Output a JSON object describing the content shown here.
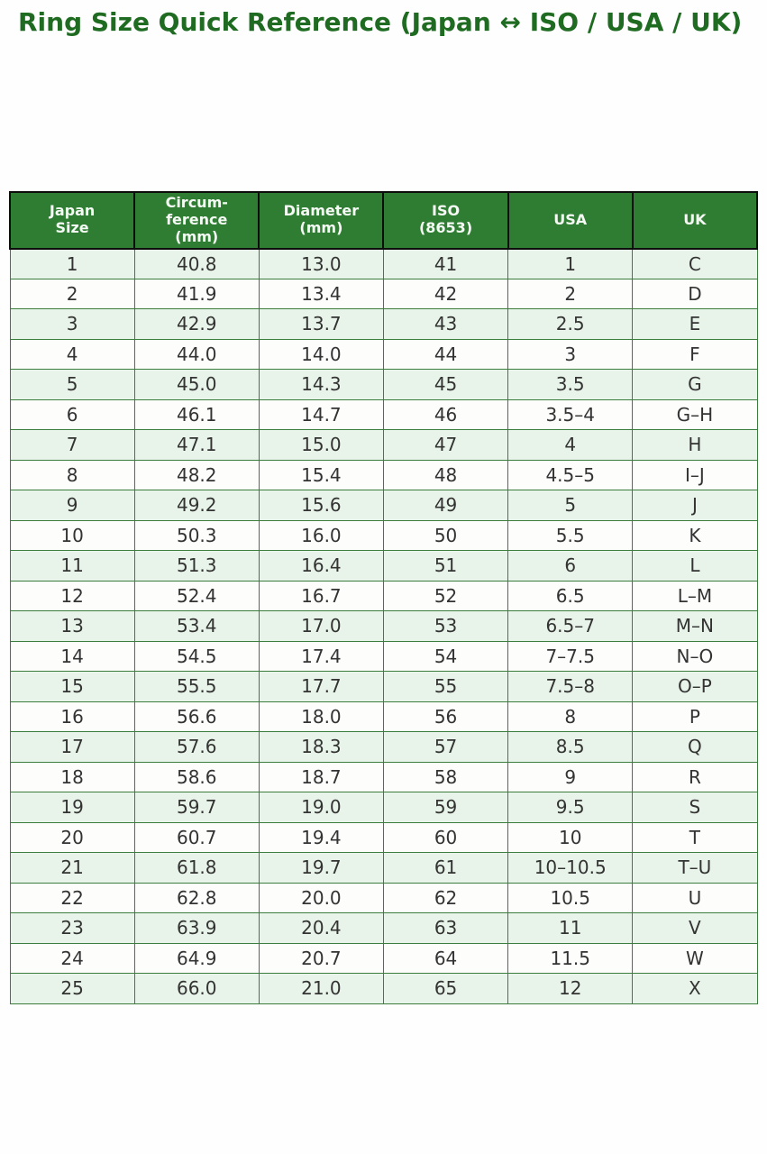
{
  "page": {
    "title": "Ring Size Quick Reference (Japan ↔ ISO / USA / UK)"
  },
  "colors": {
    "title_text": "#1e6b21",
    "header_bg": "#2e7d32",
    "header_text": "#f5fbf4",
    "row_stripe_bg": "#e8f4e9",
    "row_plain_bg": "#fdfdfc",
    "body_border": "#3a7d3c",
    "header_border": "#0d0d0d",
    "cell_text": "#333333",
    "page_bg": "#fefefe"
  },
  "chart_data": {
    "type": "table",
    "title": "Ring Size Quick Reference (Japan ↔ ISO / USA / UK)",
    "columns": [
      "Japan\nSize",
      "Circum-\nference\n(mm)",
      "Diameter\n(mm)",
      "ISO\n(8653)",
      "USA",
      "UK"
    ],
    "rows": [
      [
        "1",
        "40.8",
        "13.0",
        "41",
        "1",
        "C"
      ],
      [
        "2",
        "41.9",
        "13.4",
        "42",
        "2",
        "D"
      ],
      [
        "3",
        "42.9",
        "13.7",
        "43",
        "2.5",
        "E"
      ],
      [
        "4",
        "44.0",
        "14.0",
        "44",
        "3",
        "F"
      ],
      [
        "5",
        "45.0",
        "14.3",
        "45",
        "3.5",
        "G"
      ],
      [
        "6",
        "46.1",
        "14.7",
        "46",
        "3.5–4",
        "G–H"
      ],
      [
        "7",
        "47.1",
        "15.0",
        "47",
        "4",
        "H"
      ],
      [
        "8",
        "48.2",
        "15.4",
        "48",
        "4.5–5",
        "I–J"
      ],
      [
        "9",
        "49.2",
        "15.6",
        "49",
        "5",
        "J"
      ],
      [
        "10",
        "50.3",
        "16.0",
        "50",
        "5.5",
        "K"
      ],
      [
        "11",
        "51.3",
        "16.4",
        "51",
        "6",
        "L"
      ],
      [
        "12",
        "52.4",
        "16.7",
        "52",
        "6.5",
        "L–M"
      ],
      [
        "13",
        "53.4",
        "17.0",
        "53",
        "6.5–7",
        "M–N"
      ],
      [
        "14",
        "54.5",
        "17.4",
        "54",
        "7–7.5",
        "N–O"
      ],
      [
        "15",
        "55.5",
        "17.7",
        "55",
        "7.5–8",
        "O–P"
      ],
      [
        "16",
        "56.6",
        "18.0",
        "56",
        "8",
        "P"
      ],
      [
        "17",
        "57.6",
        "18.3",
        "57",
        "8.5",
        "Q"
      ],
      [
        "18",
        "58.6",
        "18.7",
        "58",
        "9",
        "R"
      ],
      [
        "19",
        "59.7",
        "19.0",
        "59",
        "9.5",
        "S"
      ],
      [
        "20",
        "60.7",
        "19.4",
        "60",
        "10",
        "T"
      ],
      [
        "21",
        "61.8",
        "19.7",
        "61",
        "10–10.5",
        "T–U"
      ],
      [
        "22",
        "62.8",
        "20.0",
        "62",
        "10.5",
        "U"
      ],
      [
        "23",
        "63.9",
        "20.4",
        "63",
        "11",
        "V"
      ],
      [
        "24",
        "64.9",
        "20.7",
        "64",
        "11.5",
        "W"
      ],
      [
        "25",
        "66.0",
        "21.0",
        "65",
        "12",
        "X"
      ]
    ]
  }
}
